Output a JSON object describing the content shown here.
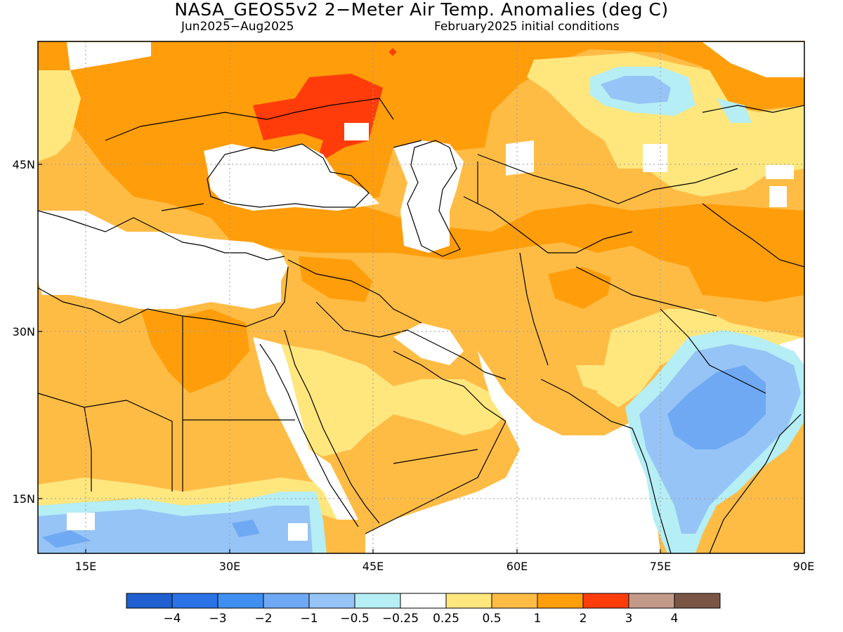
{
  "title": "NASA_GEOS5v2 2−Meter Air Temp. Anomalies (deg C)",
  "period": "Jun2025−Aug2025",
  "init": "February2025 initial conditions",
  "axes": {
    "lon_ticks": [
      "15E",
      "30E",
      "45E",
      "60E",
      "75E",
      "90E"
    ],
    "lat_ticks": [
      "45N",
      "30N",
      "15N"
    ],
    "lon_range": [
      10,
      90
    ],
    "lat_range": [
      10,
      55
    ]
  },
  "colorbar": {
    "labels": [
      "−4",
      "−3",
      "−2",
      "−1",
      "−0.5",
      "−0.25",
      "0.25",
      "0.5",
      "1",
      "2",
      "3",
      "4"
    ],
    "colors": [
      "#1f5fcf",
      "#2a72e6",
      "#3f8fee",
      "#6fa9f3",
      "#96c4f6",
      "#b5eef4",
      "#ffffff",
      "#ffe77e",
      "#ffbc45",
      "#ff9d0b",
      "#ff3c0a",
      "#c39a8a",
      "#7a5546"
    ]
  },
  "legend_ranges": {
    "warm_low": "#ffe77e",
    "warm_mid": "#ffbc45",
    "warm_high": "#ff9d0b",
    "hot": "#ff3c0a",
    "cool_light": "#b5eef4",
    "cool": "#96c4f6",
    "cool_mid": "#6fa9f3"
  }
}
